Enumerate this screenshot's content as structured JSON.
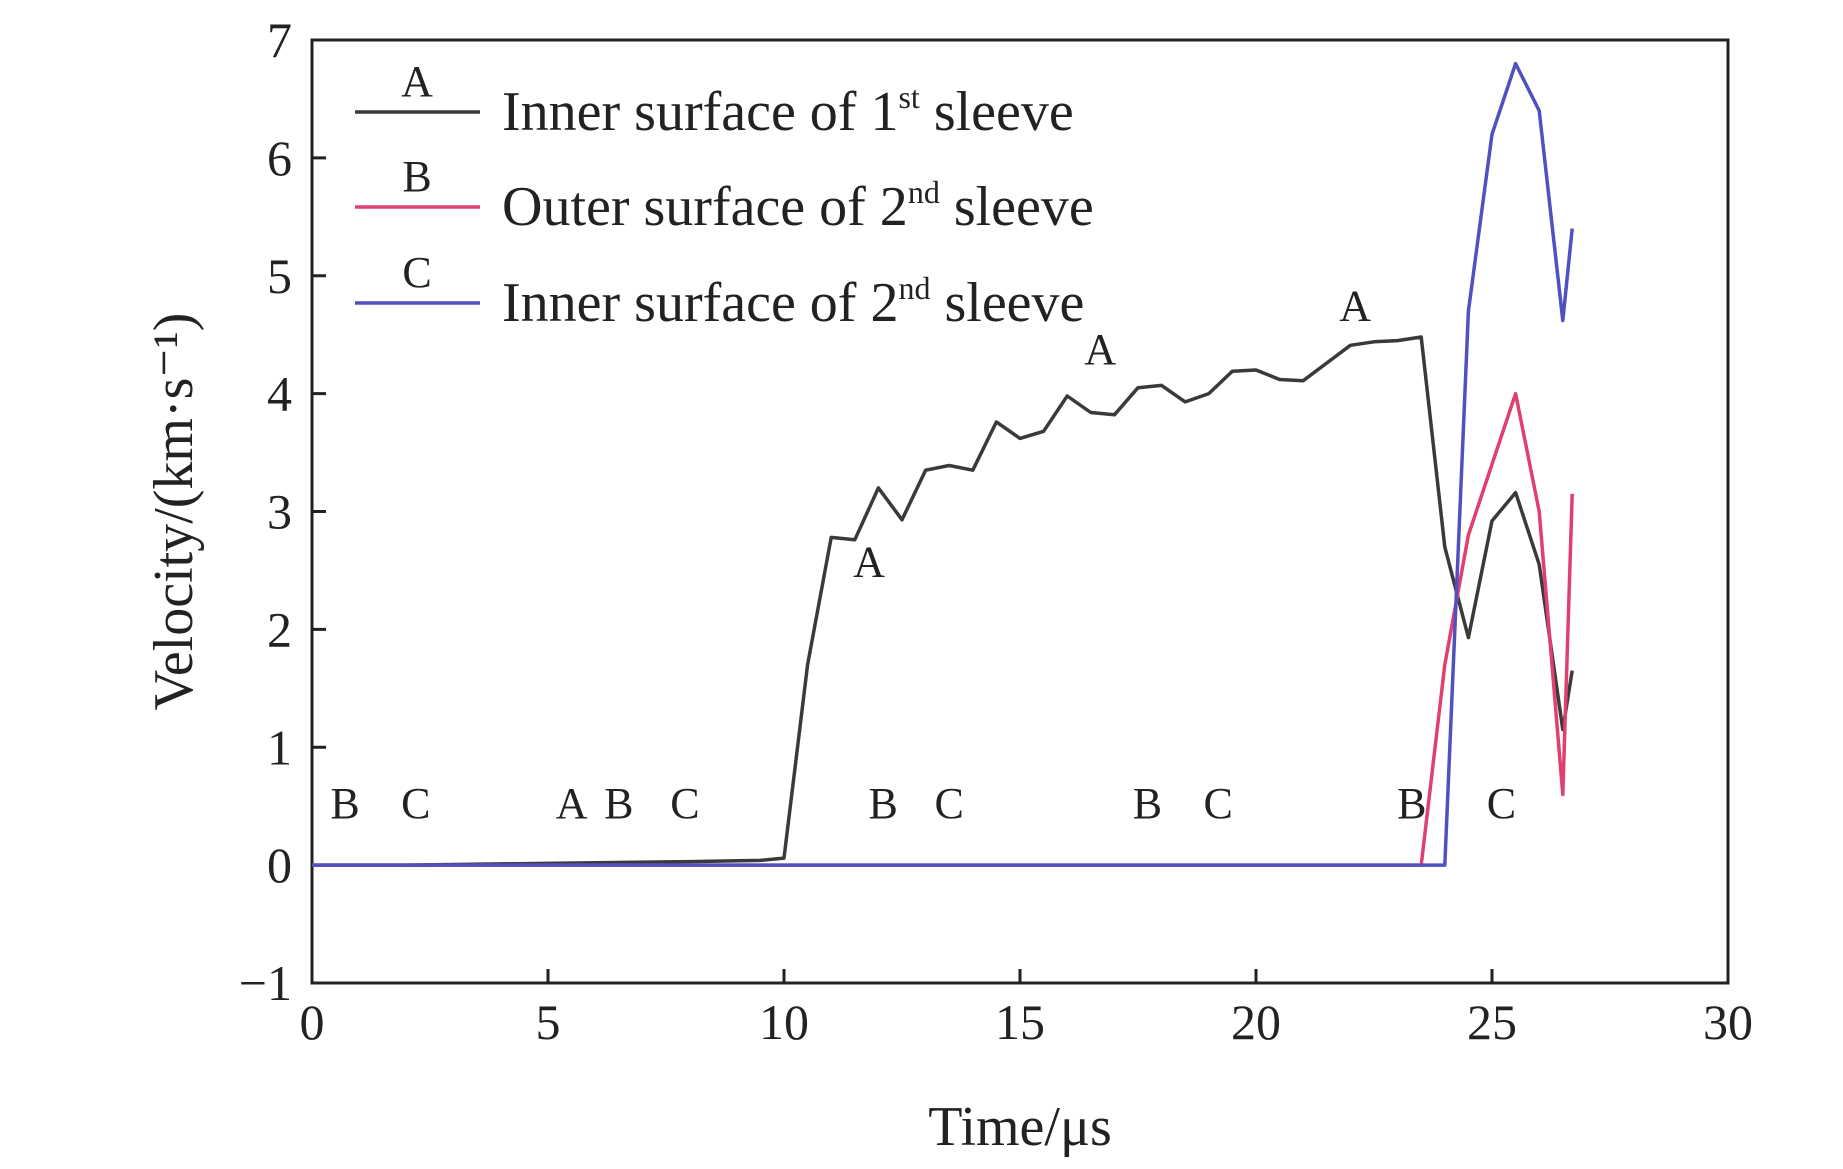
{
  "chart_data": {
    "type": "line",
    "xlabel": "Time/μs",
    "ylabel": "Velocity/(km·s⁻¹)",
    "xlim": [
      0,
      30
    ],
    "ylim": [
      -1,
      7
    ],
    "xticks": [
      0,
      5,
      10,
      15,
      20,
      25,
      30
    ],
    "yticks": [
      -1,
      0,
      1,
      2,
      3,
      4,
      5,
      6,
      7
    ],
    "xtick_labels": [
      "0",
      "5",
      "10",
      "15",
      "20",
      "25",
      "30"
    ],
    "ytick_labels": [
      "−1",
      "0",
      "1",
      "2",
      "3",
      "4",
      "5",
      "6",
      "7"
    ],
    "grid": false,
    "legend_position": "top-left",
    "series": [
      {
        "id": "A",
        "name_main": "Inner surface of 1",
        "name_sup": "st",
        "name_tail": " sleeve",
        "color": "#3a3a3a",
        "points": [
          [
            0,
            0
          ],
          [
            2,
            0
          ],
          [
            4,
            0.01
          ],
          [
            6,
            0.02
          ],
          [
            8,
            0.03
          ],
          [
            9.5,
            0.04
          ],
          [
            10,
            0.06
          ],
          [
            10.5,
            1.7
          ],
          [
            11,
            2.78
          ],
          [
            11.5,
            2.76
          ],
          [
            12,
            3.2
          ],
          [
            12.5,
            2.93
          ],
          [
            13,
            3.35
          ],
          [
            13.5,
            3.39
          ],
          [
            14,
            3.35
          ],
          [
            14.5,
            3.76
          ],
          [
            15,
            3.62
          ],
          [
            15.5,
            3.68
          ],
          [
            16,
            3.98
          ],
          [
            16.5,
            3.84
          ],
          [
            17,
            3.82
          ],
          [
            17.5,
            4.05
          ],
          [
            18,
            4.07
          ],
          [
            18.5,
            3.93
          ],
          [
            19,
            4.0
          ],
          [
            19.5,
            4.19
          ],
          [
            20,
            4.2
          ],
          [
            20.5,
            4.12
          ],
          [
            21,
            4.11
          ],
          [
            21.5,
            4.26
          ],
          [
            22,
            4.41
          ],
          [
            22.5,
            4.44
          ],
          [
            23,
            4.45
          ],
          [
            23.5,
            4.48
          ],
          [
            24,
            2.7
          ],
          [
            24.5,
            1.93
          ],
          [
            25,
            2.92
          ],
          [
            25.5,
            3.16
          ],
          [
            26,
            2.55
          ],
          [
            26.5,
            1.15
          ],
          [
            26.7,
            1.65
          ]
        ]
      },
      {
        "id": "B",
        "name_main": "Outer surface of 2",
        "name_sup": "nd",
        "name_tail": " sleeve",
        "color": "#e04070",
        "points": [
          [
            0,
            0
          ],
          [
            23.5,
            0
          ],
          [
            24,
            1.7
          ],
          [
            24.5,
            2.8
          ],
          [
            25,
            3.4
          ],
          [
            25.5,
            4.0
          ],
          [
            26,
            3.0
          ],
          [
            26.5,
            0.6
          ],
          [
            26.7,
            3.15
          ]
        ]
      },
      {
        "id": "C",
        "name_main": "Inner surface of 2",
        "name_sup": "nd",
        "name_tail": " sleeve",
        "color": "#5050c0",
        "points": [
          [
            0,
            0
          ],
          [
            24,
            0
          ],
          [
            24.5,
            4.7
          ],
          [
            25,
            6.2
          ],
          [
            25.5,
            6.8
          ],
          [
            26,
            6.4
          ],
          [
            26.5,
            4.62
          ],
          [
            26.7,
            5.4
          ]
        ]
      }
    ],
    "annotations": [
      {
        "text": "A",
        "x": 11.8,
        "y": 2.45
      },
      {
        "text": "A",
        "x": 16.7,
        "y": 4.25
      },
      {
        "text": "A",
        "x": 22.1,
        "y": 4.62
      },
      {
        "text": "B",
        "x": 0.7,
        "y": 0.4
      },
      {
        "text": "C",
        "x": 2.2,
        "y": 0.4
      },
      {
        "text": "A",
        "x": 5.5,
        "y": 0.4
      },
      {
        "text": "B",
        "x": 6.5,
        "y": 0.4
      },
      {
        "text": "C",
        "x": 7.9,
        "y": 0.4
      },
      {
        "text": "B",
        "x": 12.1,
        "y": 0.4
      },
      {
        "text": "C",
        "x": 13.5,
        "y": 0.4
      },
      {
        "text": "B",
        "x": 17.7,
        "y": 0.4
      },
      {
        "text": "C",
        "x": 19.2,
        "y": 0.4
      },
      {
        "text": "B",
        "x": 23.3,
        "y": 0.4
      },
      {
        "text": "C",
        "x": 25.2,
        "y": 0.4
      }
    ]
  }
}
